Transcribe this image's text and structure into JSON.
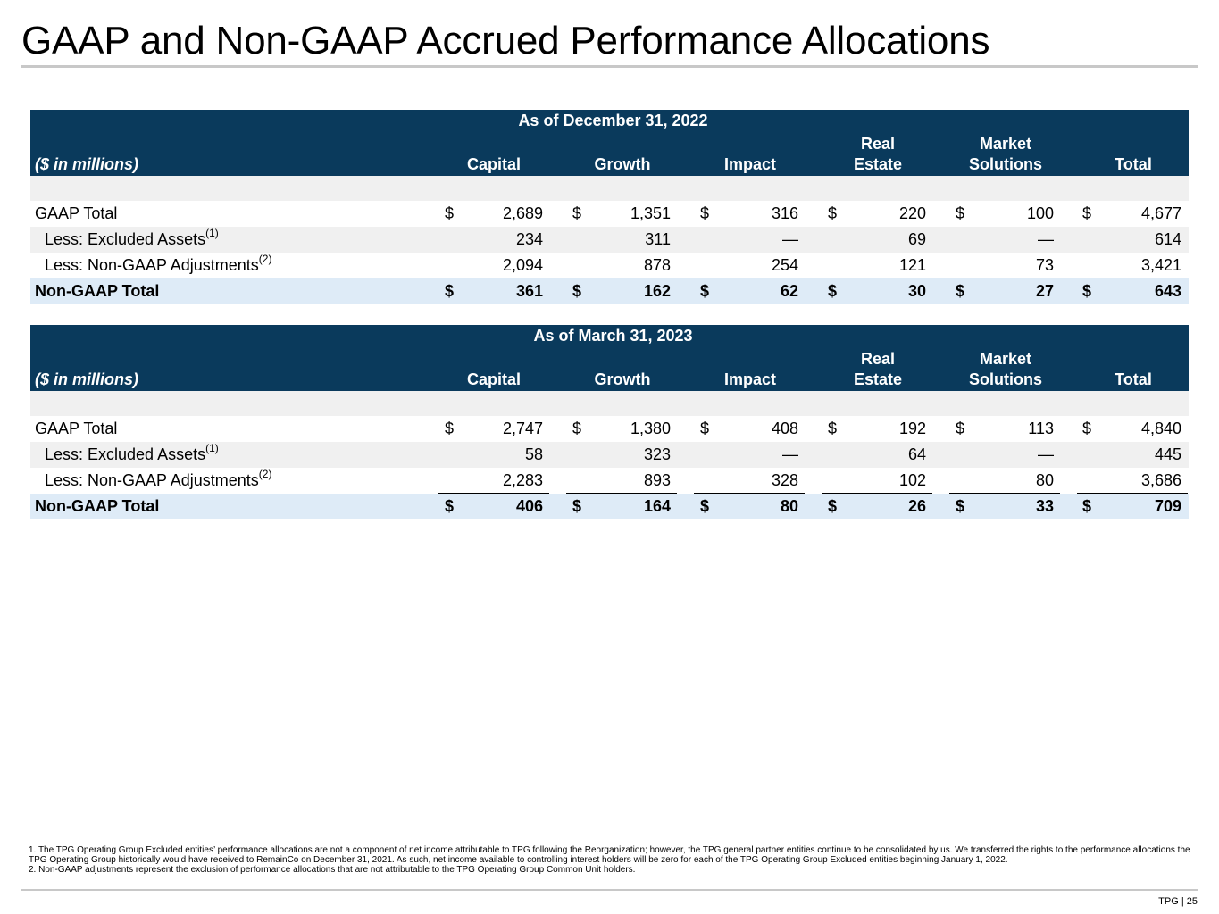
{
  "title": "GAAP and Non-GAAP Accrued Performance Allocations",
  "tables": [
    {
      "period": "As of December 31, 2022",
      "units": "($ in millions)",
      "columns": {
        "capital": "Capital",
        "growth": "Growth",
        "impact": "Impact",
        "real_estate_1": "Real",
        "real_estate_2": "Estate",
        "market_solutions_1": "Market",
        "market_solutions_2": "Solutions",
        "total": "Total"
      },
      "currency": "$",
      "rows": {
        "gaap": {
          "label": "GAAP Total",
          "values": [
            "2,689",
            "1,351",
            "316",
            "220",
            "100",
            "4,677"
          ]
        },
        "excluded": {
          "label": "Less: Excluded Assets",
          "sup": "(1)",
          "values": [
            "234",
            "311",
            "—",
            "69",
            "—",
            "614"
          ]
        },
        "adjust": {
          "label": "Less: Non-GAAP Adjustments",
          "sup": "(2)",
          "values": [
            "2,094",
            "878",
            "254",
            "121",
            "73",
            "3,421"
          ]
        },
        "nongaap": {
          "label": "Non-GAAP Total",
          "values": [
            "361",
            "162",
            "62",
            "30",
            "27",
            "643"
          ]
        }
      }
    },
    {
      "period": "As of March 31, 2023",
      "units": "($ in millions)",
      "columns": {
        "capital": "Capital",
        "growth": "Growth",
        "impact": "Impact",
        "real_estate_1": "Real",
        "real_estate_2": "Estate",
        "market_solutions_1": "Market",
        "market_solutions_2": "Solutions",
        "total": "Total"
      },
      "currency": "$",
      "rows": {
        "gaap": {
          "label": "GAAP Total",
          "values": [
            "2,747",
            "1,380",
            "408",
            "192",
            "113",
            "4,840"
          ]
        },
        "excluded": {
          "label": "Less: Excluded Assets",
          "sup": "(1)",
          "values": [
            "58",
            "323",
            "—",
            "64",
            "—",
            "445"
          ]
        },
        "adjust": {
          "label": "Less: Non-GAAP Adjustments",
          "sup": "(2)",
          "values": [
            "2,283",
            "893",
            "328",
            "102",
            "80",
            "3,686"
          ]
        },
        "nongaap": {
          "label": "Non-GAAP Total",
          "values": [
            "406",
            "164",
            "80",
            "26",
            "33",
            "709"
          ]
        }
      }
    }
  ],
  "footnotes": [
    "1. The TPG Operating Group Excluded entities’ performance allocations are not a component of net income attributable to TPG following the Reorganization; however, the TPG general partner entities continue to be consolidated by us. We transferred the rights to the performance allocations the TPG Operating Group historically would have received to RemainCo on December 31, 2021. As such, net income available to controlling interest holders will be zero for each of the TPG Operating Group Excluded entities beginning January 1, 2022.",
    "2. Non-GAAP adjustments represent the exclusion of performance allocations that are not attributable to the TPG Operating Group Common Unit holders."
  ],
  "page_number": "TPG | 25"
}
